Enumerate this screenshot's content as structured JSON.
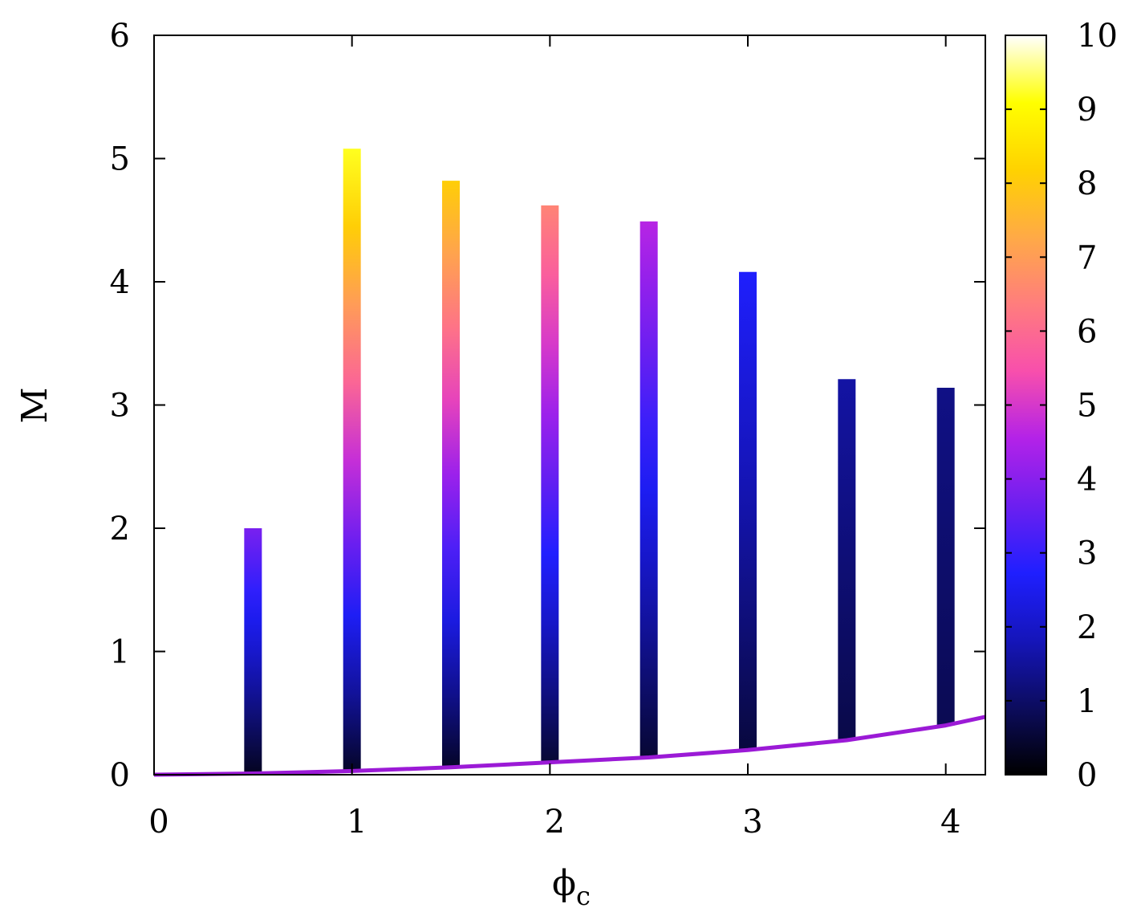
{
  "chart_data": {
    "type": "bar",
    "xlabel": "ϕ",
    "xlabel_subscript": "c",
    "ylabel": "M",
    "xlim": [
      0,
      4.2
    ],
    "ylim": [
      0,
      6
    ],
    "x_ticks": [
      0,
      1,
      2,
      3,
      4
    ],
    "y_ticks": [
      0,
      1,
      2,
      3,
      4,
      5,
      6
    ],
    "colorbar": {
      "range": [
        0,
        10
      ],
      "ticks": [
        0,
        1,
        2,
        3,
        4,
        5,
        6,
        7,
        8,
        9,
        10
      ],
      "palette": [
        "#000000",
        "#0c0c5e",
        "#1515ba",
        "#1f1fff",
        "#6c1ff0",
        "#b322e8",
        "#f84fac",
        "#ff7d7d",
        "#ffaa46",
        "#ffd200",
        "#ffff00",
        "#ffffff"
      ]
    },
    "bars": [
      {
        "x": 0.5,
        "m_min": 0.0,
        "m_max": 2.0,
        "c_bottom": 0.3,
        "c_top": 3.8
      },
      {
        "x": 1.0,
        "m_min": 0.03,
        "m_max": 5.08,
        "c_bottom": 0.4,
        "c_top": 9.2
      },
      {
        "x": 1.5,
        "m_min": 0.06,
        "m_max": 4.82,
        "c_bottom": 0.4,
        "c_top": 8.1
      },
      {
        "x": 2.0,
        "m_min": 0.1,
        "m_max": 4.62,
        "c_bottom": 0.5,
        "c_top": 6.5
      },
      {
        "x": 2.5,
        "m_min": 0.14,
        "m_max": 4.49,
        "c_bottom": 0.5,
        "c_top": 4.6
      },
      {
        "x": 3.0,
        "m_min": 0.2,
        "m_max": 4.08,
        "c_bottom": 0.6,
        "c_top": 2.7
      },
      {
        "x": 3.5,
        "m_min": 0.28,
        "m_max": 3.21,
        "c_bottom": 0.7,
        "c_top": 1.6
      },
      {
        "x": 4.0,
        "m_min": 0.4,
        "m_max": 3.14,
        "c_bottom": 0.8,
        "c_top": 1.3
      }
    ],
    "curve": {
      "color": "#9b1ad6",
      "x": [
        0,
        0.5,
        1.0,
        1.5,
        2.0,
        2.5,
        3.0,
        3.5,
        4.0,
        4.2
      ],
      "y": [
        0,
        0.01,
        0.03,
        0.06,
        0.1,
        0.14,
        0.2,
        0.28,
        0.4,
        0.47
      ]
    }
  }
}
